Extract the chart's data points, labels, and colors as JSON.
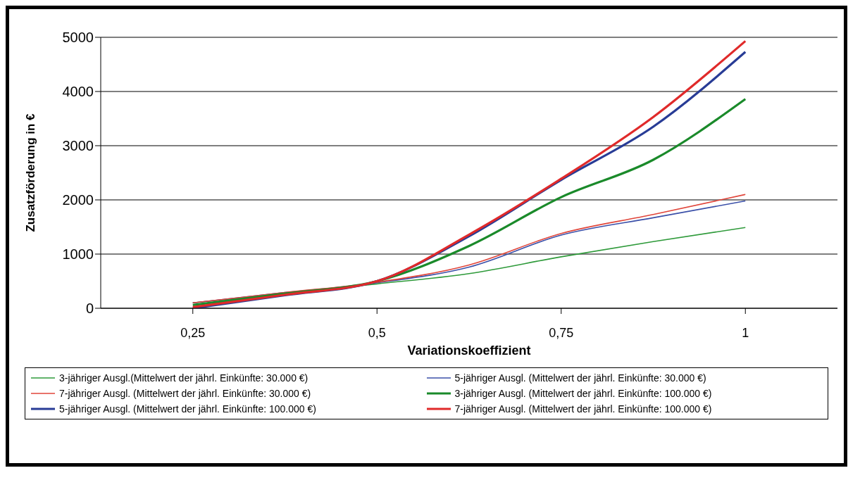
{
  "chart_data": {
    "type": "line",
    "xlabel": "Variationskoeffizient",
    "ylabel": "Zusatzförderung in €",
    "x": [
      0.25,
      0.375,
      0.5,
      0.625,
      0.75,
      0.875,
      1
    ],
    "xlim": [
      0.125,
      1.125
    ],
    "xticks": [
      {
        "value": 0.25,
        "label": "0,25"
      },
      {
        "value": 0.5,
        "label": "0,5"
      },
      {
        "value": 0.75,
        "label": "0,75"
      },
      {
        "value": 1,
        "label": "1"
      }
    ],
    "ylim": [
      0,
      5000
    ],
    "yticks": [
      0,
      1000,
      2000,
      3000,
      4000,
      5000
    ],
    "grid": "y",
    "legend": "bottom",
    "marker": "none",
    "line_style": "solid",
    "series": [
      {
        "name": "3-jähriger Ausgl.(Mittelwert der jährl. Einkünfte: 30.000 €)",
        "color": "#2e9a3a",
        "values": [
          100,
          280,
          450,
          640,
          950,
          1230,
          1490
        ]
      },
      {
        "name": "5-jähriger Ausgl. (Mittelwert der jährl. Einkünfte: 30.000 €)",
        "color": "#3a4fa8",
        "values": [
          100,
          290,
          470,
          760,
          1350,
          1670,
          1980
        ]
      },
      {
        "name": "7-jähriger Ausgl. (Mittelwert der jährl. Einkünfte: 30.000 €)",
        "color": "#e0453a",
        "values": [
          100,
          290,
          480,
          800,
          1380,
          1730,
          2100
        ]
      },
      {
        "name": "3-jähriger Ausgl. (Mittelwert der jährl. Einkünfte: 100.000 €)",
        "color": "#1a8a2a",
        "values": [
          60,
          270,
          500,
          1150,
          2050,
          2740,
          3860
        ]
      },
      {
        "name": "5-jähriger Ausgl. (Mittelwert der jährl. Einkünfte: 100.000 €)",
        "color": "#283c96",
        "values": [
          0,
          240,
          500,
          1330,
          2370,
          3350,
          4730
        ]
      },
      {
        "name": "7-jähriger Ausgl. (Mittelwert der jährl. Einkünfte: 100.000 €)",
        "color": "#e02a2a",
        "values": [
          20,
          250,
          500,
          1360,
          2390,
          3530,
          4930
        ]
      }
    ]
  }
}
